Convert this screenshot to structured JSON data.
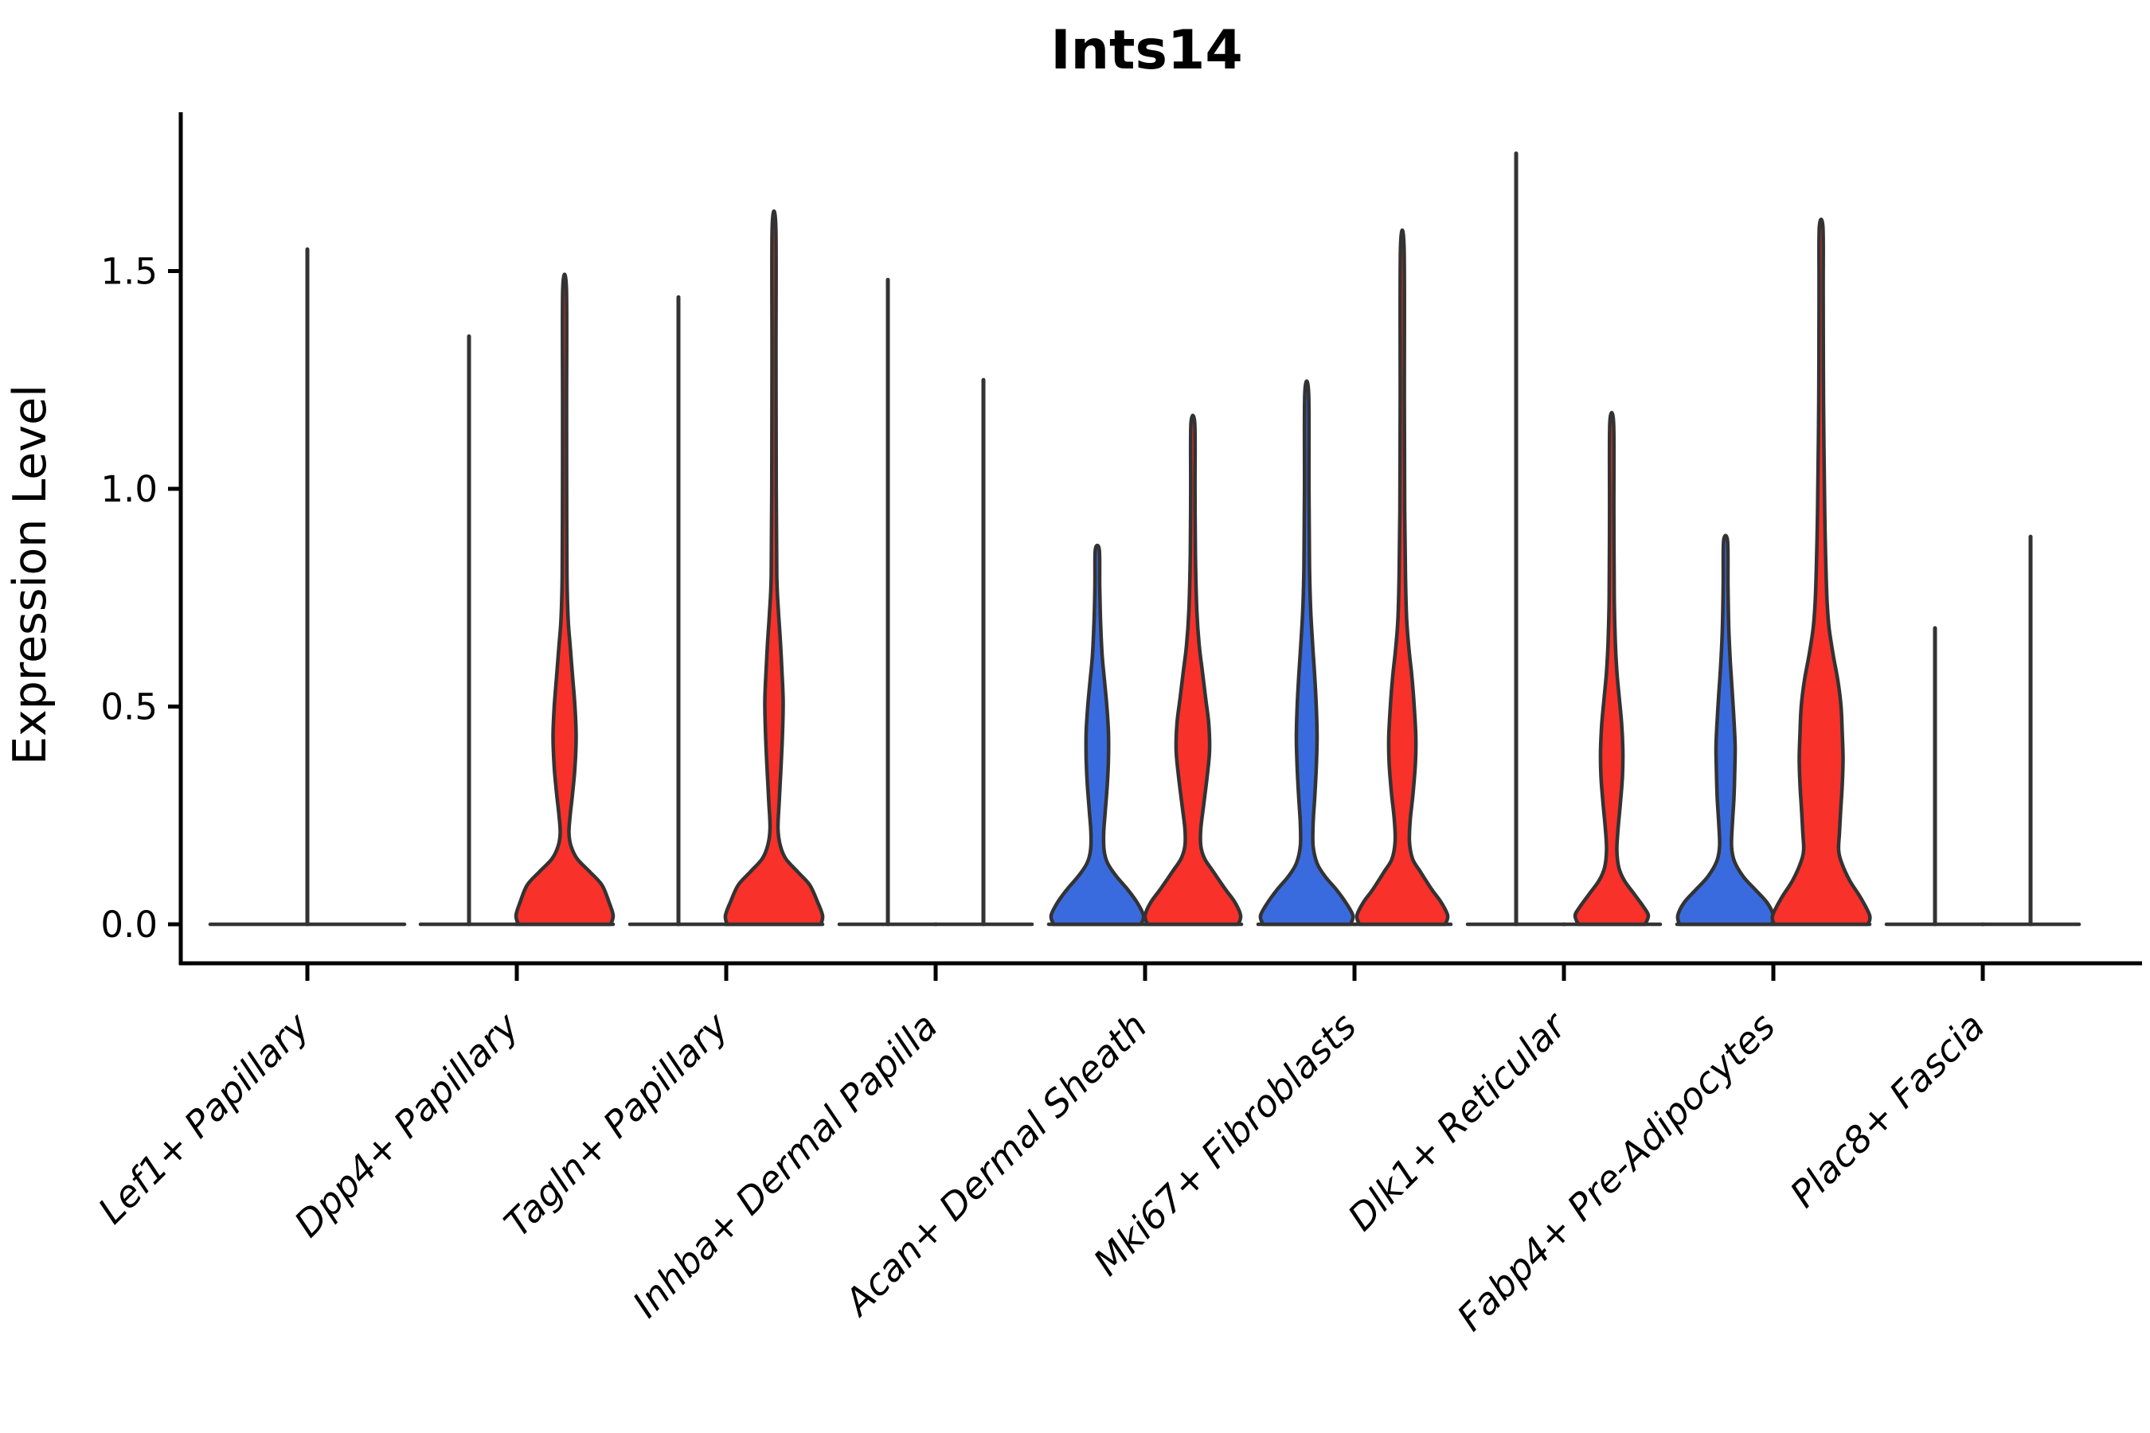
{
  "title": "Ints14",
  "chart_data": {
    "type": "violin",
    "title": "Ints14",
    "ylabel": "Expression Level",
    "xlabel": "",
    "yticks": [
      "0.0",
      "0.5",
      "1.0",
      "1.5"
    ],
    "ytick_values": [
      0.0,
      0.5,
      1.0,
      1.5
    ],
    "ylim": [
      -0.1,
      1.87
    ],
    "grid": false,
    "legend": "none",
    "colors": {
      "group_blue": "#3a6bde",
      "group_red": "#f8312a",
      "outline": "#333333",
      "axis": "#000000",
      "background": "#ffffff"
    },
    "categories": [
      {
        "label": "Lef1+ Papillary",
        "violins": [
          {
            "group": "all",
            "shape": "line",
            "fill": "none",
            "max": 1.55,
            "offset": 0,
            "base_halfwidth": 122
          }
        ]
      },
      {
        "label": "Dpp4+ Papillary",
        "violins": [
          {
            "group": "blue",
            "shape": "line",
            "fill": "none",
            "max": 1.35,
            "offset": -60,
            "base_halfwidth": 61
          },
          {
            "group": "red",
            "shape": "density",
            "fill": "#f8312a",
            "max": 1.46,
            "offset": 60,
            "base_halfwidth": 61,
            "profile": [
              [
                0,
                58
              ],
              [
                0.02,
                61
              ],
              [
                0.05,
                56
              ],
              [
                0.09,
                47
              ],
              [
                0.12,
                32
              ],
              [
                0.15,
                16
              ],
              [
                0.18,
                8
              ],
              [
                0.21,
                5.5
              ],
              [
                0.25,
                7
              ],
              [
                0.3,
                10
              ],
              [
                0.36,
                13
              ],
              [
                0.43,
                14.5
              ],
              [
                0.5,
                13
              ],
              [
                0.57,
                10
              ],
              [
                0.64,
                7
              ],
              [
                0.7,
                4.5
              ],
              [
                0.8,
                3
              ],
              [
                1.0,
                2.6
              ],
              [
                1.2,
                2.5
              ],
              [
                1.46,
                2.3
              ]
            ]
          }
        ]
      },
      {
        "label": "Tagln+ Papillary",
        "violins": [
          {
            "group": "blue",
            "shape": "line",
            "fill": "none",
            "max": 1.44,
            "offset": -60,
            "base_halfwidth": 61
          },
          {
            "group": "red",
            "shape": "density",
            "fill": "#f8312a",
            "max": 1.6,
            "offset": 60,
            "base_halfwidth": 61,
            "profile": [
              [
                0,
                59
              ],
              [
                0.02,
                61
              ],
              [
                0.05,
                55
              ],
              [
                0.09,
                45
              ],
              [
                0.12,
                30
              ],
              [
                0.15,
                15
              ],
              [
                0.18,
                8
              ],
              [
                0.22,
                5
              ],
              [
                0.28,
                6.5
              ],
              [
                0.35,
                8.5
              ],
              [
                0.43,
                10.5
              ],
              [
                0.51,
                11.5
              ],
              [
                0.58,
                10
              ],
              [
                0.65,
                8
              ],
              [
                0.72,
                5.5
              ],
              [
                0.8,
                3.5
              ],
              [
                1.0,
                2.8
              ],
              [
                1.3,
                2.5
              ],
              [
                1.6,
                2.3
              ]
            ]
          }
        ]
      },
      {
        "label": "Inhba+ Dermal Papilla",
        "violins": [
          {
            "group": "blue",
            "shape": "line",
            "fill": "none",
            "max": 1.48,
            "offset": -60,
            "base_halfwidth": 61
          },
          {
            "group": "red",
            "shape": "line",
            "fill": "none",
            "max": 1.25,
            "offset": 60,
            "base_halfwidth": 61
          }
        ]
      },
      {
        "label": "Acan+ Dermal Sheath",
        "violins": [
          {
            "group": "blue",
            "shape": "density",
            "fill": "#3a6bde",
            "max": 0.86,
            "offset": -60,
            "base_halfwidth": 61,
            "profile": [
              [
                0,
                55
              ],
              [
                0.02,
                58
              ],
              [
                0.05,
                50
              ],
              [
                0.08,
                38
              ],
              [
                0.11,
                24
              ],
              [
                0.14,
                13
              ],
              [
                0.17,
                8.5
              ],
              [
                0.21,
                8
              ],
              [
                0.26,
                10
              ],
              [
                0.32,
                12.5
              ],
              [
                0.38,
                14
              ],
              [
                0.44,
                14
              ],
              [
                0.5,
                12
              ],
              [
                0.56,
                9
              ],
              [
                0.62,
                6
              ],
              [
                0.7,
                4
              ],
              [
                0.78,
                3
              ],
              [
                0.86,
                2.5
              ]
            ]
          },
          {
            "group": "red",
            "shape": "density",
            "fill": "#f8312a",
            "max": 1.15,
            "offset": 60,
            "base_halfwidth": 61,
            "profile": [
              [
                0,
                57
              ],
              [
                0.02,
                60
              ],
              [
                0.05,
                53
              ],
              [
                0.08,
                41
              ],
              [
                0.12,
                26
              ],
              [
                0.15,
                15
              ],
              [
                0.18,
                10
              ],
              [
                0.22,
                10
              ],
              [
                0.28,
                14
              ],
              [
                0.34,
                18
              ],
              [
                0.4,
                21
              ],
              [
                0.46,
                20
              ],
              [
                0.52,
                16
              ],
              [
                0.58,
                12
              ],
              [
                0.64,
                8
              ],
              [
                0.72,
                5
              ],
              [
                0.85,
                3.2
              ],
              [
                1.0,
                2.7
              ],
              [
                1.15,
                2.4
              ]
            ]
          }
        ]
      },
      {
        "label": "Mki67+ Fibroblasts",
        "violins": [
          {
            "group": "blue",
            "shape": "density",
            "fill": "#3a6bde",
            "max": 1.22,
            "offset": -60,
            "base_halfwidth": 61,
            "profile": [
              [
                0,
                55
              ],
              [
                0.02,
                58
              ],
              [
                0.05,
                49
              ],
              [
                0.08,
                37
              ],
              [
                0.11,
                23
              ],
              [
                0.14,
                13
              ],
              [
                0.18,
                8
              ],
              [
                0.23,
                8
              ],
              [
                0.29,
                10
              ],
              [
                0.36,
                12
              ],
              [
                0.43,
                13
              ],
              [
                0.5,
                12
              ],
              [
                0.57,
                10
              ],
              [
                0.64,
                7.5
              ],
              [
                0.72,
                5
              ],
              [
                0.82,
                3.5
              ],
              [
                1.0,
                2.8
              ],
              [
                1.22,
                2.4
              ]
            ]
          },
          {
            "group": "red",
            "shape": "density",
            "fill": "#f8312a",
            "max": 1.55,
            "offset": 60,
            "base_halfwidth": 61,
            "profile": [
              [
                0,
                54
              ],
              [
                0.02,
                57
              ],
              [
                0.05,
                49
              ],
              [
                0.08,
                37
              ],
              [
                0.12,
                23
              ],
              [
                0.15,
                13
              ],
              [
                0.19,
                9
              ],
              [
                0.24,
                10
              ],
              [
                0.3,
                13.5
              ],
              [
                0.37,
                16.5
              ],
              [
                0.43,
                17
              ],
              [
                0.5,
                15
              ],
              [
                0.57,
                12
              ],
              [
                0.63,
                8.5
              ],
              [
                0.7,
                5.5
              ],
              [
                0.8,
                4
              ],
              [
                0.95,
                3
              ],
              [
                1.2,
                2.6
              ],
              [
                1.55,
                2.3
              ]
            ]
          }
        ]
      },
      {
        "label": "Dlk1+ Reticular",
        "violins": [
          {
            "group": "blue",
            "shape": "line",
            "fill": "none",
            "max": 1.77,
            "offset": -60,
            "base_halfwidth": 61
          },
          {
            "group": "red",
            "shape": "density",
            "fill": "#f8312a",
            "max": 1.15,
            "offset": 60,
            "base_halfwidth": 61,
            "profile": [
              [
                0,
                42
              ],
              [
                0.02,
                46
              ],
              [
                0.04,
                40
              ],
              [
                0.07,
                28
              ],
              [
                0.1,
                16
              ],
              [
                0.13,
                9
              ],
              [
                0.17,
                6.5
              ],
              [
                0.22,
                8
              ],
              [
                0.28,
                11
              ],
              [
                0.34,
                13.5
              ],
              [
                0.4,
                14
              ],
              [
                0.46,
                12.5
              ],
              [
                0.52,
                9.5
              ],
              [
                0.58,
                6.5
              ],
              [
                0.65,
                4.5
              ],
              [
                0.75,
                3.2
              ],
              [
                0.95,
                2.7
              ],
              [
                1.15,
                2.4
              ]
            ]
          }
        ]
      },
      {
        "label": "Fabp4+ Pre-Adipocytes",
        "violins": [
          {
            "group": "blue",
            "shape": "density",
            "fill": "#3a6bde",
            "max": 0.88,
            "offset": -60,
            "base_halfwidth": 61,
            "profile": [
              [
                0,
                58
              ],
              [
                0.02,
                60
              ],
              [
                0.05,
                52
              ],
              [
                0.08,
                37
              ],
              [
                0.11,
                22
              ],
              [
                0.145,
                11
              ],
              [
                0.18,
                7.5
              ],
              [
                0.23,
                8.5
              ],
              [
                0.29,
                10.5
              ],
              [
                0.35,
                11.5
              ],
              [
                0.41,
                12
              ],
              [
                0.47,
                10.5
              ],
              [
                0.53,
                8.5
              ],
              [
                0.6,
                6
              ],
              [
                0.68,
                4
              ],
              [
                0.78,
                3
              ],
              [
                0.88,
                2.5
              ]
            ]
          },
          {
            "group": "red",
            "shape": "density",
            "fill": "#f8312a",
            "max": 1.6,
            "offset": 60,
            "base_halfwidth": 61,
            "profile": [
              [
                0,
                59
              ],
              [
                0.02,
                61
              ],
              [
                0.06,
                50
              ],
              [
                0.1,
                36
              ],
              [
                0.14,
                26
              ],
              [
                0.17,
                22
              ],
              [
                0.21,
                23
              ],
              [
                0.26,
                24.5
              ],
              [
                0.32,
                26.5
              ],
              [
                0.38,
                27.5
              ],
              [
                0.44,
                26.5
              ],
              [
                0.5,
                25
              ],
              [
                0.56,
                21
              ],
              [
                0.62,
                15
              ],
              [
                0.68,
                10
              ],
              [
                0.74,
                7.5
              ],
              [
                0.82,
                6
              ],
              [
                0.95,
                4.5
              ],
              [
                1.2,
                3
              ],
              [
                1.45,
                2.6
              ],
              [
                1.6,
                2.3
              ]
            ]
          }
        ]
      },
      {
        "label": "Plac8+ Fascia",
        "violins": [
          {
            "group": "blue",
            "shape": "line",
            "fill": "none",
            "max": 0.68,
            "offset": -60,
            "base_halfwidth": 61
          },
          {
            "group": "red",
            "shape": "line",
            "fill": "none",
            "max": 0.89,
            "offset": 60,
            "base_halfwidth": 61
          }
        ]
      }
    ]
  }
}
